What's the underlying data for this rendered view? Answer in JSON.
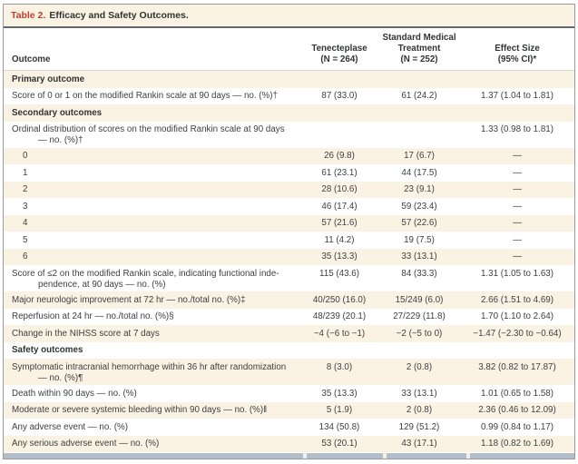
{
  "title": {
    "label": "Table 2.",
    "text": "Efficacy and Safety Outcomes."
  },
  "columns": {
    "outcome": "Outcome",
    "tenecteplase": "Tenecteplase\n(N = 264)",
    "standard_medical": "Standard Medical\nTreatment\n(N = 252)",
    "effect_size": "Effect Size\n(95% CI)*"
  },
  "table": {
    "rows": [
      {
        "type": "section",
        "label": "Primary outcome",
        "tenecteplase": "",
        "standard": "",
        "effect": ""
      },
      {
        "type": "single",
        "label": "Score of 0 or 1 on the modified Rankin scale at 90 days — no. (%)†",
        "tenecteplase": "87 (33.0)",
        "standard": "61 (24.2)",
        "effect": "1.37 (1.04 to 1.81)"
      },
      {
        "type": "section",
        "label": "Secondary outcomes",
        "tenecteplase": "",
        "standard": "",
        "effect": ""
      },
      {
        "type": "double",
        "label": "Ordinal distribution of scores on the modified Rankin scale at 90 days\n— no. (%)†",
        "tenecteplase": "",
        "standard": "",
        "effect": "1.33 (0.98 to 1.81)"
      },
      {
        "type": "sub",
        "label": "0",
        "tenecteplase": "26 (9.8)",
        "standard": "17 (6.7)",
        "effect": "—"
      },
      {
        "type": "sub",
        "label": "1",
        "tenecteplase": "61 (23.1)",
        "standard": "44 (17.5)",
        "effect": "—"
      },
      {
        "type": "sub",
        "label": "2",
        "tenecteplase": "28 (10.6)",
        "standard": "23 (9.1)",
        "effect": "—"
      },
      {
        "type": "sub",
        "label": "3",
        "tenecteplase": "46 (17.4)",
        "standard": "59 (23.4)",
        "effect": "—"
      },
      {
        "type": "sub",
        "label": "4",
        "tenecteplase": "57 (21.6)",
        "standard": "57 (22.6)",
        "effect": "—"
      },
      {
        "type": "sub",
        "label": "5",
        "tenecteplase": "11 (4.2)",
        "standard": "19 (7.5)",
        "effect": "—"
      },
      {
        "type": "sub",
        "label": "6",
        "tenecteplase": "35 (13.3)",
        "standard": "33 (13.1)",
        "effect": "—"
      },
      {
        "type": "double",
        "label": "Score of ≤2 on the modified Rankin scale, indicating functional inde-\npendence, at 90 days — no. (%)",
        "tenecteplase": "115 (43.6)",
        "standard": "84 (33.3)",
        "effect": "1.31 (1.05 to 1.63)"
      },
      {
        "type": "single",
        "label": "Major neurologic improvement at 72 hr — no./total no. (%)‡",
        "tenecteplase": "40/250 (16.0)",
        "standard": "15/249 (6.0)",
        "effect": "2.66 (1.51 to 4.69)"
      },
      {
        "type": "single",
        "label": "Reperfusion at 24 hr — no./total no. (%)§",
        "tenecteplase": "48/239 (20.1)",
        "standard": "27/229 (11.8)",
        "effect": "1.70 (1.10 to 2.64)"
      },
      {
        "type": "single",
        "label": "Change in the NIHSS score at 7 days",
        "tenecteplase": "−4 (−6 to −1)",
        "standard": "−2 (−5 to 0)",
        "effect": "−1.47 (−2.30 to −0.64)"
      },
      {
        "type": "section",
        "label": "Safety outcomes",
        "tenecteplase": "",
        "standard": "",
        "effect": ""
      },
      {
        "type": "double",
        "label": "Symptomatic intracranial hemorrhage within 36 hr after randomization\n— no. (%)¶",
        "tenecteplase": "8 (3.0)",
        "standard": "2 (0.8)",
        "effect": "3.82 (0.82 to 17.87)"
      },
      {
        "type": "single",
        "label": "Death within 90 days — no. (%)",
        "tenecteplase": "35 (13.3)",
        "standard": "33 (13.1)",
        "effect": "1.01 (0.65 to 1.58)"
      },
      {
        "type": "single",
        "label": "Moderate or severe systemic bleeding within 90 days — no. (%)‖",
        "tenecteplase": "5 (1.9)",
        "standard": "2 (0.8)",
        "effect": "2.36 (0.46 to 12.09)"
      },
      {
        "type": "single",
        "label": "Any adverse event — no. (%)",
        "tenecteplase": "134 (50.8)",
        "standard": "129 (51.2)",
        "effect": "0.99 (0.84 to 1.17)"
      },
      {
        "type": "single",
        "label": "Any serious adverse event — no. (%)",
        "tenecteplase": "53 (20.1)",
        "standard": "43 (17.1)",
        "effect": "1.18 (0.82 to 1.69)"
      }
    ]
  },
  "colors": {
    "accent_red": "#c2402f",
    "row_shade_cream": "#faf2e3",
    "text": "#3f4042",
    "text_bold": "#323335",
    "bottom_band": "#b2bfc8"
  }
}
